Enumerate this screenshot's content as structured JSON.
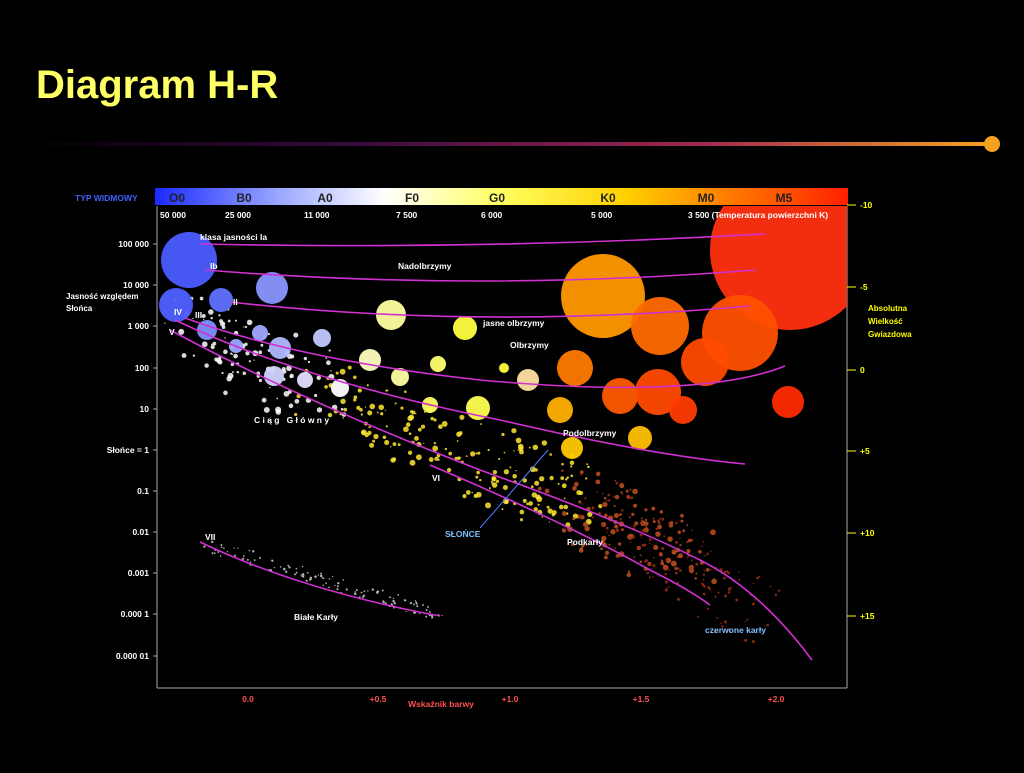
{
  "header": {
    "title": "Diagram H-R"
  },
  "diagram": {
    "spectral_label": "TYP WIDMOWY",
    "spectral_classes": [
      "O0",
      "B0",
      "A0",
      "F0",
      "G0",
      "K0",
      "M0",
      "M5"
    ],
    "temperatures": [
      "50 000",
      "25 000",
      "11 000",
      "7 500",
      "6 000",
      "5 000",
      "3 500 (Temperatura powierzchni K)"
    ],
    "luminosity_label": [
      "Jasność względem",
      "Słońca"
    ],
    "luminosity_ticks": [
      "100 000",
      "10 000",
      "1 000",
      "100",
      "10",
      "Słońce = 1",
      "0.1",
      "0.01",
      "0.001",
      "0.000 1",
      "0.000 01"
    ],
    "magnitude_label": [
      "Absolutna",
      "Wielkość",
      "Gwiazdowa"
    ],
    "magnitude_ticks": [
      "-10",
      "-5",
      "0",
      "+5",
      "+10",
      "+15"
    ],
    "color_index_label": "Wskaźnik barwy",
    "color_index_ticks": [
      "0.0",
      "+0.5",
      "+1.0",
      "+1.5",
      "+2.0"
    ],
    "annotations": [
      "klasa jasności Ia",
      "Ib",
      "II",
      "III",
      "IV",
      "V",
      "Nadolbrzymy",
      "jasne olbrzymy",
      "Olbrzymy",
      "C i ą g   G ł ó w n y",
      "Podolbrzymy",
      "VI",
      "SŁOŃCE",
      "Podkarły",
      "VII",
      "Białe Karły",
      "czerwone karły"
    ]
  }
}
